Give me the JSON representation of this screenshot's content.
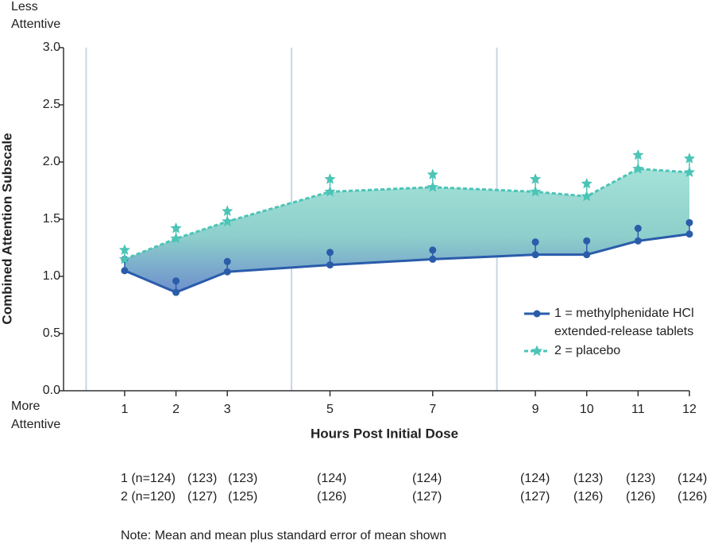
{
  "chart_data": {
    "type": "line",
    "top_label": [
      "Less",
      "Attentive"
    ],
    "bottom_label": [
      "More",
      "Attentive"
    ],
    "y_label": "Combined Attention Subscale",
    "x_label": "Hours Post Initial Dose",
    "x": [
      1,
      2,
      3,
      5,
      7,
      9,
      10,
      11,
      12
    ],
    "xlim": [
      -0.19,
      12
    ],
    "xticks": [
      1,
      2,
      3,
      5,
      7,
      9,
      10,
      11,
      12
    ],
    "ylim": [
      0,
      3
    ],
    "yticks": [
      {
        "value": 0,
        "label": "0.0"
      },
      {
        "value": 0.5,
        "label": "0.5"
      },
      {
        "value": 1,
        "label": "1.0"
      },
      {
        "value": 1.5,
        "label": "1.5"
      },
      {
        "value": 2,
        "label": "2.0"
      },
      {
        "value": 2.5,
        "label": "2.5"
      },
      {
        "value": 3,
        "label": "3.0"
      }
    ],
    "vlines": [
      0.25,
      4.25,
      8.25
    ],
    "series": [
      {
        "name": "1 = methylphenidate HCl extended-release tablets",
        "color": "#2a5caa",
        "marker": "circle",
        "values": [
          1.05,
          0.86,
          1.04,
          1.1,
          1.15,
          1.19,
          1.19,
          1.31,
          1.37
        ],
        "errors": [
          0.1,
          0.1,
          0.09,
          0.11,
          0.08,
          0.11,
          0.12,
          0.11,
          0.1
        ]
      },
      {
        "name": "2 = placebo",
        "color": "#4cc4b6",
        "marker": "star",
        "dashed": true,
        "values": [
          1.15,
          1.33,
          1.48,
          1.74,
          1.78,
          1.74,
          1.7,
          1.94,
          1.91
        ],
        "errors": [
          0.08,
          0.09,
          0.09,
          0.11,
          0.11,
          0.11,
          0.11,
          0.12,
          0.12
        ]
      }
    ],
    "n_counts": [
      [
        "1 (n=124)",
        "(123)",
        "(123)",
        "(124)",
        "(124)",
        "(124)",
        "(123)",
        "(123)",
        "(124)"
      ],
      [
        "2 (n=120)",
        "(127)",
        "(125)",
        "(126)",
        "(127)",
        "(127)",
        "(126)",
        "(126)",
        "(126)"
      ]
    ],
    "note": "Note: Mean and mean plus standard error of mean shown"
  }
}
